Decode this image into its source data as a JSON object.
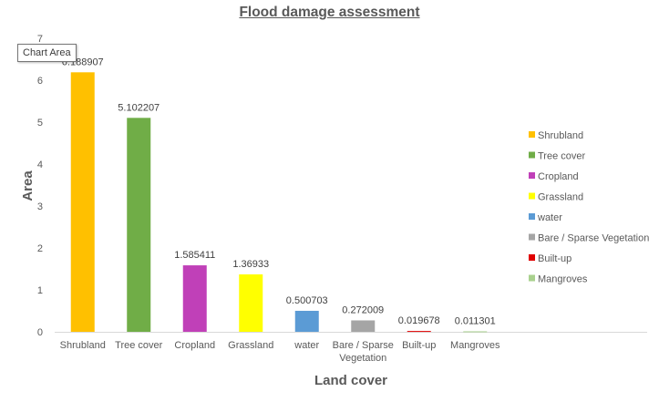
{
  "chart_data": {
    "type": "bar",
    "title": "Flood damage assessment",
    "xlabel": "Land cover",
    "ylabel": "Area",
    "ylim": [
      0,
      7
    ],
    "yticks": [
      0,
      1,
      2,
      3,
      4,
      5,
      6,
      7
    ],
    "grid": false,
    "legend_position": "right",
    "categories": [
      "Shrubland",
      "Tree cover",
      "Cropland",
      "Grassland",
      "water",
      "Bare / Sparse Vegetation",
      "Built-up",
      "Mangroves"
    ],
    "tick_labels": [
      [
        "Shrubland"
      ],
      [
        "Tree cover"
      ],
      [
        "Cropland"
      ],
      [
        "Grassland"
      ],
      [
        "water"
      ],
      [
        "Bare / Sparse",
        "Vegetation"
      ],
      [
        "Built-up"
      ],
      [
        "Mangroves"
      ]
    ],
    "values": [
      6.188907,
      5.102207,
      1.585411,
      1.36933,
      0.500703,
      0.272009,
      0.019678,
      0.011301
    ],
    "data_labels": [
      "6.188907",
      "5.102207",
      "1.585411",
      "1.36933",
      "0.500703",
      "0.272009",
      "0.019678",
      "0.011301"
    ],
    "colors": [
      "#FFC000",
      "#70AD47",
      "#C040B8",
      "#FFFF00",
      "#5B9BD5",
      "#A5A5A5",
      "#E00000",
      "#A9D18E"
    ],
    "legend": [
      "Shrubland",
      "Tree cover",
      "Cropland",
      "Grassland",
      "water",
      "Bare / Sparse Vegetation",
      "Built-up",
      "Mangroves"
    ]
  },
  "tooltip": {
    "text": "Chart Area"
  }
}
